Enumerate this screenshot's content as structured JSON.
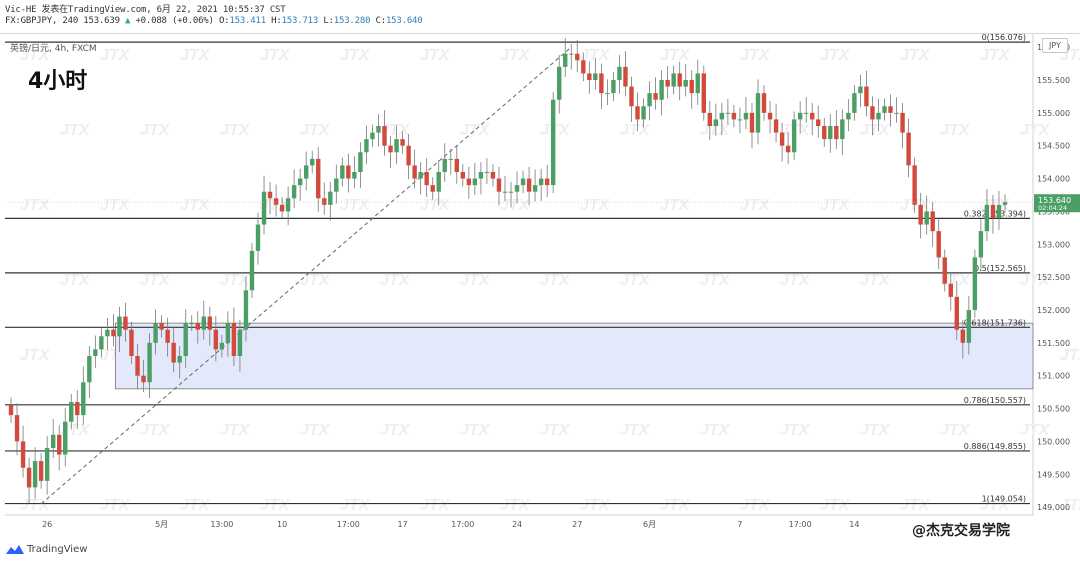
{
  "header": {
    "line1": "Vic-HE 发表在TradingView.com, 6月 22, 2021 10:55:37 CST",
    "symbol": "FX:GBPJPY, 240",
    "last": "153.639",
    "arrow": "▲",
    "change": "+0.088 (+0.06%)",
    "o_label": "O:",
    "o_value": "153.411",
    "h_label": "H:",
    "h_value": "153.713",
    "l_label": "L:",
    "l_value": "153.280",
    "c_label": "C:",
    "c_value": "153.640"
  },
  "symbol_label": "英镑/日元, 4h, FXCM",
  "currency": "JPY",
  "watermark": "JTX",
  "branding": {
    "tradingview": "TradingView",
    "weibo": "@杰克交易学院"
  },
  "chart_data": {
    "type": "candlestick",
    "title": "4小时",
    "ylim": [
      148.88,
      156.2
    ],
    "y_ticks": [
      "156.000",
      "155.500",
      "155.000",
      "154.500",
      "154.000",
      "153.500",
      "153.000",
      "152.500",
      "152.000",
      "151.500",
      "151.000",
      "150.500",
      "150.000",
      "149.500",
      "149.000"
    ],
    "y_tick_values": [
      156.0,
      155.5,
      155.0,
      154.5,
      154.0,
      153.5,
      153.0,
      152.5,
      152.0,
      151.5,
      151.0,
      150.5,
      150.0,
      149.5,
      149.0
    ],
    "x_labels": [
      "26",
      "5月",
      "13:00",
      "10",
      "17:00",
      "17",
      "17:00",
      "24",
      "27",
      "6月",
      "7",
      "17:00",
      "14"
    ],
    "x_label_index": [
      6,
      25,
      35,
      45,
      56,
      65,
      75,
      84,
      94,
      106,
      121,
      131,
      140
    ],
    "fib_levels": [
      {
        "ratio": "0",
        "price": 156.076,
        "text": "0(156.076)"
      },
      {
        "ratio": "0.382",
        "price": 153.394,
        "text": "0.382(153.394)"
      },
      {
        "ratio": "0.5",
        "price": 152.565,
        "text": "0.5(152.565)"
      },
      {
        "ratio": "0.618",
        "price": 151.736,
        "text": "0.618(151.736)"
      },
      {
        "ratio": "0.786",
        "price": 150.557,
        "text": "0.786(150.557)"
      },
      {
        "ratio": "0.886",
        "price": 149.855,
        "text": "0.886(149.855)"
      },
      {
        "ratio": "1",
        "price": 149.054,
        "text": "1(149.054)"
      }
    ],
    "zone": {
      "price_high": 151.8,
      "price_low": 150.8,
      "start_index": 18
    },
    "trendline": {
      "from": {
        "index": 5,
        "price": 149.05
      },
      "to": {
        "index": 93,
        "price": 156.0
      }
    },
    "last_price": {
      "value": "153.640",
      "countdown": "02:04:24"
    },
    "closes": [
      150.4,
      150.0,
      149.6,
      149.3,
      149.7,
      149.4,
      149.9,
      150.1,
      149.8,
      150.3,
      150.6,
      150.4,
      150.9,
      151.3,
      151.4,
      151.6,
      151.7,
      151.6,
      151.9,
      151.7,
      151.3,
      151.0,
      150.9,
      151.5,
      151.8,
      151.7,
      151.5,
      151.2,
      151.3,
      151.8,
      151.8,
      151.7,
      151.9,
      151.7,
      151.4,
      151.5,
      151.8,
      151.3,
      151.7,
      152.3,
      152.9,
      153.3,
      153.8,
      153.7,
      153.6,
      153.5,
      153.7,
      153.9,
      154.0,
      154.2,
      154.3,
      153.7,
      153.6,
      153.8,
      154.0,
      154.2,
      154.0,
      154.1,
      154.4,
      154.6,
      154.7,
      154.8,
      154.5,
      154.4,
      154.6,
      154.5,
      154.2,
      154.0,
      154.1,
      153.9,
      153.8,
      154.1,
      154.3,
      154.3,
      154.1,
      154.0,
      153.9,
      154.0,
      154.1,
      154.1,
      154.0,
      153.8,
      153.8,
      153.8,
      153.9,
      154.0,
      153.8,
      153.9,
      154.0,
      153.9,
      155.2,
      155.7,
      155.9,
      155.9,
      155.8,
      155.6,
      155.5,
      155.6,
      155.3,
      155.3,
      155.5,
      155.7,
      155.4,
      155.1,
      154.9,
      155.1,
      155.3,
      155.2,
      155.5,
      155.4,
      155.6,
      155.4,
      155.5,
      155.3,
      155.6,
      155.0,
      154.8,
      154.9,
      155.0,
      155.0,
      154.9,
      154.9,
      155.0,
      154.7,
      155.3,
      155.0,
      154.9,
      154.7,
      154.5,
      154.4,
      154.9,
      155.0,
      155.0,
      154.9,
      154.8,
      154.6,
      154.8,
      154.6,
      154.9,
      155.0,
      155.3,
      155.4,
      155.1,
      154.9,
      155.0,
      155.1,
      155.0,
      155.0,
      154.7,
      154.2,
      153.6,
      153.3,
      153.5,
      153.2,
      152.8,
      152.4,
      152.2,
      151.7,
      151.5,
      152.0,
      152.8,
      153.2,
      153.6,
      153.4,
      153.6,
      153.64
    ]
  }
}
